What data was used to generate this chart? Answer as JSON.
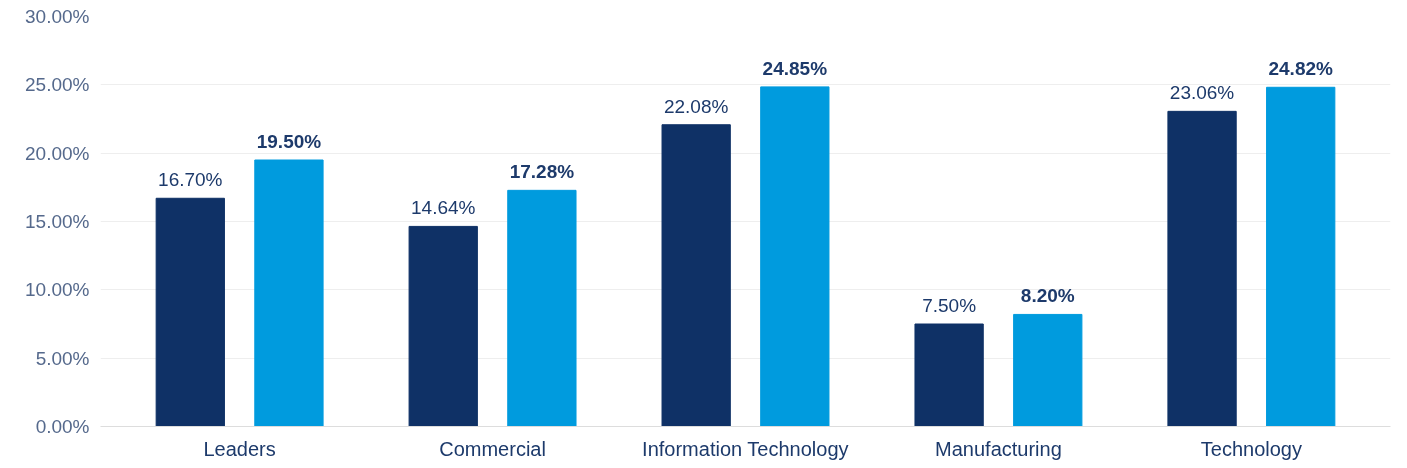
{
  "chart_data": {
    "type": "bar",
    "categories": [
      "Leaders",
      "Commercial",
      "Information Technology",
      "Manufacturing",
      "Technology"
    ],
    "series": [
      {
        "color": "#0f3166",
        "values": [
          16.7,
          14.64,
          22.08,
          7.5,
          23.06
        ],
        "value_labels": [
          "16.70%",
          "14.64%",
          "22.08%",
          "7.50%",
          "23.06%"
        ]
      },
      {
        "color": "#009bde",
        "values": [
          19.5,
          17.28,
          24.85,
          8.2,
          24.82
        ],
        "value_labels": [
          "19.50%",
          "17.28%",
          "24.85%",
          "8.20%",
          "24.82%"
        ]
      }
    ],
    "ylim": [
      0,
      30
    ],
    "yticks": [
      {
        "value": 0,
        "label": "0.00%"
      },
      {
        "value": 5,
        "label": "5.00%"
      },
      {
        "value": 10,
        "label": "10.00%"
      },
      {
        "value": 15,
        "label": "15.00%"
      },
      {
        "value": 20,
        "label": "20.00%"
      },
      {
        "value": 25,
        "label": "25.00%"
      },
      {
        "value": 30,
        "label": "30.00%"
      }
    ],
    "grid": "y"
  }
}
